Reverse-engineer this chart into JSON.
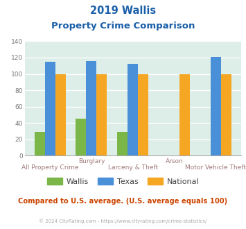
{
  "title_line1": "2019 Wallis",
  "title_line2": "Property Crime Comparison",
  "wallis": [
    29,
    45,
    29,
    0,
    0
  ],
  "texas": [
    115,
    116,
    112,
    0,
    121
  ],
  "national": [
    100,
    100,
    100,
    100,
    100
  ],
  "wallis_color": "#7ab648",
  "texas_color": "#4a90d9",
  "national_color": "#f5a623",
  "bg_color": "#ddeee8",
  "title_color": "#1a5fa8",
  "label_color": "#a07878",
  "ylabel_color": "#777777",
  "footnote_color": "#cc4400",
  "copyright_color": "#aaaaaa",
  "ylim": [
    0,
    140
  ],
  "yticks": [
    0,
    20,
    40,
    60,
    80,
    100,
    120,
    140
  ],
  "footnote": "Compared to U.S. average. (U.S. average equals 100)",
  "copyright": "© 2024 CityRating.com - https://www.cityrating.com/crime-statistics/",
  "top_labels": [
    "",
    "Burglary",
    "",
    "Arson",
    ""
  ],
  "bottom_labels": [
    "All Property Crime",
    "",
    "Larceny & Theft",
    "",
    "Motor Vehicle Theft"
  ]
}
